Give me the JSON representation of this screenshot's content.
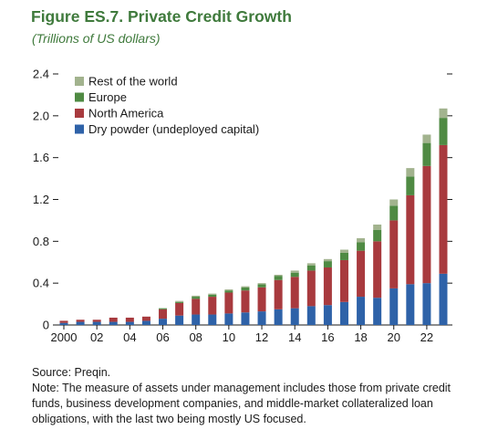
{
  "header": {
    "title": "Figure ES.7. Private Credit Growth",
    "subtitle": "(Trillions of US dollars)"
  },
  "notes": {
    "source": "Source: Preqin.",
    "note": "Note: The measure of assets under management includes those from private credit funds, business development companies, and middle-market collateralized loan obligations, with the last two being mostly US focused."
  },
  "colors": {
    "dry_powder": "#2e62a8",
    "north_america": "#a83a3e",
    "europe": "#4f8a43",
    "rest_of_world": "#a2b38e"
  },
  "chart_data": {
    "type": "bar",
    "stacked": true,
    "title": "Figure ES.7. Private Credit Growth",
    "subtitle": "(Trillions of US dollars)",
    "xlabel": "",
    "ylabel": "",
    "ylim": [
      0,
      2.4
    ],
    "yticks": [
      "0",
      "0.4",
      "0.8",
      "1.2",
      "1.6",
      "2.0",
      "2.4"
    ],
    "xticks": [
      "2000",
      "02",
      "04",
      "06",
      "08",
      "10",
      "12",
      "14",
      "16",
      "18",
      "20",
      "22"
    ],
    "categories": [
      "2000",
      "2001",
      "2002",
      "2003",
      "2004",
      "2005",
      "2006",
      "2007",
      "2008",
      "2009",
      "2010",
      "2011",
      "2012",
      "2013",
      "2014",
      "2015",
      "2016",
      "2017",
      "2018",
      "2019",
      "2020",
      "2021",
      "2022",
      "2023"
    ],
    "legend_position": "top-left",
    "series": [
      {
        "name": "Dry powder (undeployed capital)",
        "color": "#2e62a8",
        "values": [
          0.02,
          0.03,
          0.03,
          0.03,
          0.03,
          0.04,
          0.06,
          0.09,
          0.1,
          0.1,
          0.11,
          0.12,
          0.13,
          0.15,
          0.16,
          0.18,
          0.19,
          0.22,
          0.27,
          0.26,
          0.35,
          0.39,
          0.4,
          0.49
        ]
      },
      {
        "name": "North America",
        "color": "#a83a3e",
        "values": [
          0.02,
          0.02,
          0.02,
          0.04,
          0.04,
          0.04,
          0.09,
          0.12,
          0.15,
          0.17,
          0.2,
          0.21,
          0.23,
          0.28,
          0.3,
          0.34,
          0.36,
          0.4,
          0.44,
          0.54,
          0.65,
          0.85,
          1.12,
          1.23
        ]
      },
      {
        "name": "Europe",
        "color": "#4f8a43",
        "values": [
          0.0,
          0.0,
          0.0,
          0.0,
          0.0,
          0.0,
          0.01,
          0.01,
          0.02,
          0.02,
          0.02,
          0.03,
          0.03,
          0.04,
          0.04,
          0.05,
          0.06,
          0.07,
          0.08,
          0.11,
          0.14,
          0.18,
          0.22,
          0.26
        ]
      },
      {
        "name": "Rest of the world",
        "color": "#a2b38e",
        "values": [
          0.0,
          0.0,
          0.0,
          0.0,
          0.0,
          0.0,
          0.0,
          0.01,
          0.01,
          0.01,
          0.01,
          0.01,
          0.01,
          0.01,
          0.02,
          0.02,
          0.02,
          0.03,
          0.04,
          0.05,
          0.06,
          0.08,
          0.08,
          0.09
        ]
      }
    ]
  }
}
